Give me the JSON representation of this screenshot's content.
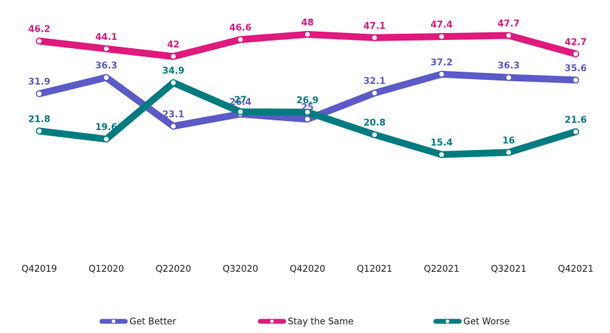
{
  "chart_data": {
    "type": "line",
    "categories": [
      "Q42019",
      "Q12020",
      "Q22020",
      "Q32020",
      "Q42020",
      "Q12021",
      "Q22021",
      "Q32021",
      "Q42021"
    ],
    "series": [
      {
        "name": "Get Better",
        "color": "#5b5bc8",
        "values": [
          31.9,
          36.3,
          23.1,
          26.4,
          25,
          32.1,
          37.2,
          36.3,
          35.6
        ]
      },
      {
        "name": "Stay the Same",
        "color": "#e0197d",
        "values": [
          46.2,
          44.1,
          42,
          46.6,
          48,
          47.1,
          47.4,
          47.7,
          42.7
        ]
      },
      {
        "name": "Get Worse",
        "color": "#007c80",
        "values": [
          21.8,
          19.6,
          34.9,
          27,
          26.9,
          20.8,
          15.4,
          16,
          21.6
        ]
      }
    ],
    "title": "",
    "xlabel": "",
    "ylabel": "",
    "grid": false,
    "legend_position": "bottom"
  }
}
